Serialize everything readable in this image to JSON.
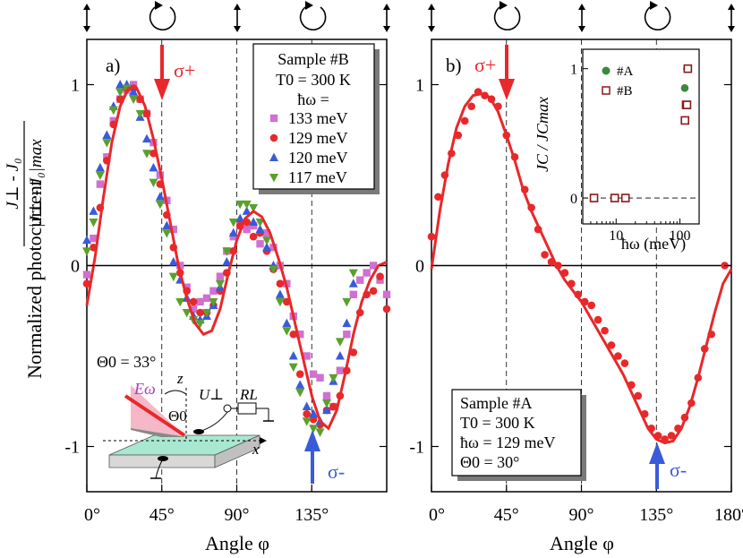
{
  "colors": {
    "fit": "#e8282a",
    "red_pts": "#e8282a",
    "pink_pts": "#d070d0",
    "blue_pts": "#3a5bd9",
    "green_pts": "#5aa02c",
    "sigma_plus": "#e8282a",
    "sigma_minus": "#3a5bd9",
    "inset_A": "#3a8a3a",
    "inset_B": "#8a1a1a"
  },
  "figure": {
    "y_axis_label": "Normalized photocurrent",
    "y_fraction_num": "J⊥ - J₀",
    "y_fraction_den": "|J⊥ - J₀|max",
    "polarization_icons": [
      "linear",
      "circular",
      "linear",
      "circular",
      "linear"
    ]
  },
  "chart_data": [
    {
      "type": "scatter",
      "panel": "a)",
      "xlabel": "Angle φ",
      "xlim": [
        0,
        180
      ],
      "ylim": [
        -1.25,
        1.25
      ],
      "xticks": [
        0,
        45,
        90,
        135
      ],
      "xtick_labels": [
        "0°",
        "45°",
        "90°",
        "135°"
      ],
      "yticks": [
        1,
        0,
        -1
      ],
      "ytick_labels": [
        "1",
        "0",
        "-1"
      ],
      "dashed_x": [
        45,
        90,
        135
      ],
      "annotations": {
        "sigma_plus": "σ+",
        "sigma_minus": "σ-",
        "theta": "Θ0 = 33°",
        "schematic": {
          "E": "Eω",
          "z": "z",
          "x": "x",
          "theta": "Θ0",
          "U": "U⊥",
          "R": "RL"
        }
      },
      "legend": {
        "title_lines": [
          "Sample #B",
          "T0 = 300 K",
          "ħω ="
        ],
        "entries": [
          {
            "label": "133 meV",
            "marker": "square",
            "color": "#d070d0"
          },
          {
            "label": "129 meV",
            "marker": "circle",
            "color": "#e8282a"
          },
          {
            "label": "120 meV",
            "marker": "triangle-up",
            "color": "#3a5bd9"
          },
          {
            "label": "117 meV",
            "marker": "triangle-down",
            "color": "#5aa02c"
          }
        ]
      },
      "fit": {
        "x": [
          0,
          5,
          10,
          15,
          20,
          25,
          30,
          35,
          40,
          45,
          50,
          55,
          60,
          65,
          70,
          75,
          80,
          85,
          90,
          95,
          100,
          105,
          110,
          115,
          120,
          125,
          130,
          135,
          140,
          145,
          150,
          155,
          160,
          165,
          170,
          175,
          180
        ],
        "y": [
          -0.22,
          0.05,
          0.38,
          0.68,
          0.88,
          0.98,
          0.98,
          0.88,
          0.7,
          0.48,
          0.24,
          0.0,
          -0.18,
          -0.32,
          -0.38,
          -0.36,
          -0.24,
          -0.04,
          0.14,
          0.26,
          0.3,
          0.27,
          0.18,
          0.04,
          -0.12,
          -0.32,
          -0.52,
          -0.72,
          -0.86,
          -0.9,
          -0.8,
          -0.6,
          -0.38,
          -0.2,
          -0.08,
          0.0,
          0.02
        ]
      },
      "series": [
        {
          "name": "133 meV",
          "marker": "square",
          "color": "#d070d0",
          "x": [
            0,
            4,
            8,
            12,
            16,
            20,
            24,
            28,
            32,
            36,
            40,
            44,
            48,
            52,
            56,
            60,
            64,
            68,
            72,
            76,
            80,
            84,
            88,
            92,
            96,
            100,
            104,
            108,
            112,
            116,
            120,
            124,
            128,
            132,
            136,
            140,
            144,
            148,
            152,
            156,
            160,
            164,
            168,
            172,
            176,
            180
          ],
          "y": [
            -0.05,
            0.15,
            0.45,
            0.6,
            0.8,
            0.92,
            0.97,
            1.0,
            0.92,
            0.84,
            0.68,
            0.5,
            0.36,
            0.2,
            0.0,
            -0.12,
            -0.24,
            -0.2,
            -0.18,
            -0.14,
            -0.06,
            0.08,
            0.16,
            0.22,
            0.2,
            0.22,
            0.12,
            0.18,
            0.1,
            0.0,
            -0.1,
            -0.28,
            -0.38,
            -0.5,
            -0.6,
            -0.62,
            -0.72,
            -0.78,
            -0.58,
            -0.38,
            -0.16,
            -0.08,
            -0.04,
            0.0,
            -0.08,
            -0.16
          ]
        },
        {
          "name": "129 meV",
          "marker": "circle",
          "color": "#e8282a",
          "x": [
            0,
            4,
            8,
            12,
            16,
            20,
            24,
            28,
            32,
            36,
            40,
            44,
            48,
            52,
            56,
            60,
            64,
            68,
            72,
            76,
            80,
            84,
            88,
            92,
            96,
            100,
            104,
            108,
            112,
            116,
            120,
            124,
            128,
            132,
            136,
            140,
            144,
            148,
            152,
            156,
            160,
            164,
            168,
            172,
            176,
            180
          ],
          "y": [
            -0.1,
            0.1,
            0.32,
            0.58,
            0.78,
            0.92,
            0.98,
            0.98,
            0.92,
            0.84,
            0.62,
            0.45,
            0.28,
            0.1,
            -0.04,
            -0.14,
            -0.2,
            -0.26,
            -0.26,
            -0.22,
            -0.14,
            -0.04,
            0.08,
            0.22,
            0.24,
            0.16,
            0.18,
            0.08,
            -0.02,
            -0.1,
            -0.2,
            -0.38,
            -0.6,
            -0.82,
            -0.85,
            -0.88,
            -0.8,
            -0.78,
            -0.72,
            -0.58,
            -0.48,
            -0.26,
            -0.16,
            -0.14,
            -0.06,
            -0.24
          ]
        },
        {
          "name": "120 meV",
          "marker": "triangle-up",
          "color": "#3a5bd9",
          "x": [
            0,
            4,
            8,
            12,
            16,
            20,
            24,
            28,
            32,
            36,
            40,
            44,
            48,
            52,
            56,
            60,
            64,
            68,
            72,
            76,
            80,
            84,
            88,
            92,
            96,
            100,
            104,
            108,
            112,
            116,
            120,
            124,
            128,
            132,
            136,
            140,
            144,
            148,
            152,
            156,
            160
          ],
          "y": [
            0.14,
            0.3,
            0.54,
            0.72,
            0.88,
            1.0,
            1.0,
            0.96,
            0.82,
            0.7,
            0.54,
            0.38,
            0.22,
            0.02,
            -0.08,
            -0.18,
            -0.28,
            -0.3,
            -0.28,
            -0.22,
            -0.12,
            0.02,
            0.18,
            0.26,
            0.3,
            0.24,
            0.2,
            0.1,
            0.0,
            -0.16,
            -0.32,
            -0.5,
            -0.66,
            -0.78,
            -0.82,
            -0.86,
            -0.8,
            -0.64,
            -0.5,
            -0.32,
            -0.1
          ]
        },
        {
          "name": "117 meV",
          "marker": "triangle-down",
          "color": "#5aa02c",
          "x": [
            0,
            4,
            8,
            12,
            16,
            20,
            24,
            28,
            32,
            36,
            40,
            44,
            48,
            52,
            56,
            60,
            64,
            68,
            72,
            76,
            80,
            84,
            88,
            92,
            96,
            100,
            104,
            108,
            112,
            116,
            120,
            124,
            128,
            132,
            136,
            140,
            144,
            148,
            152,
            156,
            160
          ],
          "y": [
            0.08,
            0.24,
            0.5,
            0.68,
            0.86,
            0.96,
            0.98,
            0.92,
            0.84,
            0.62,
            0.46,
            0.34,
            0.18,
            -0.06,
            -0.2,
            -0.26,
            -0.3,
            -0.32,
            -0.26,
            -0.2,
            -0.1,
            0.08,
            0.24,
            0.34,
            0.34,
            0.32,
            0.24,
            0.14,
            -0.02,
            -0.2,
            -0.36,
            -0.56,
            -0.7,
            -0.86,
            -0.9,
            -0.92,
            -0.76,
            -0.62,
            -0.42,
            -0.2,
            -0.04
          ]
        }
      ]
    },
    {
      "type": "scatter",
      "panel": "b)",
      "xlabel": "Angle φ",
      "xlim": [
        0,
        180
      ],
      "ylim": [
        -1.25,
        1.25
      ],
      "xticks": [
        0,
        45,
        90,
        135,
        180
      ],
      "xtick_labels": [
        "0°",
        "45°",
        "90°",
        "135°",
        "180°"
      ],
      "yticks": [
        1,
        0,
        -1
      ],
      "ytick_labels": [
        "1",
        "0",
        "-1"
      ],
      "dashed_x": [
        45,
        90,
        135
      ],
      "annotations": {
        "sigma_plus": "σ+",
        "sigma_minus": "σ-"
      },
      "info_box": [
        "Sample #A",
        "T0 = 300 K",
        "ħω = 129 meV",
        "Θ0 = 30°"
      ],
      "fit": {
        "x": [
          0,
          5,
          10,
          15,
          20,
          25,
          30,
          35,
          40,
          45,
          50,
          55,
          60,
          65,
          70,
          75,
          80,
          85,
          90,
          95,
          100,
          105,
          110,
          115,
          120,
          125,
          130,
          135,
          140,
          145,
          150,
          155,
          160,
          165,
          170,
          175,
          180
        ],
        "y": [
          -0.02,
          0.3,
          0.56,
          0.76,
          0.88,
          0.94,
          0.95,
          0.93,
          0.85,
          0.72,
          0.58,
          0.42,
          0.3,
          0.2,
          0.1,
          0.0,
          -0.08,
          -0.14,
          -0.2,
          -0.28,
          -0.36,
          -0.44,
          -0.52,
          -0.6,
          -0.7,
          -0.8,
          -0.9,
          -0.96,
          -0.98,
          -0.97,
          -0.9,
          -0.78,
          -0.62,
          -0.44,
          -0.26,
          -0.1,
          -0.02
        ]
      },
      "series": [
        {
          "name": "129 meV",
          "marker": "circle",
          "color": "#e8282a",
          "x": [
            0,
            4,
            8,
            12,
            16,
            20,
            24,
            28,
            32,
            36,
            40,
            45,
            50,
            56,
            60,
            64,
            68,
            72,
            76,
            80,
            84,
            88,
            92,
            96,
            100,
            104,
            108,
            112,
            116,
            120,
            124,
            128,
            132,
            136,
            140,
            144,
            148,
            152,
            156,
            160,
            164,
            168,
            176
          ],
          "y": [
            0.16,
            0.38,
            0.5,
            0.62,
            0.72,
            0.8,
            0.88,
            0.96,
            0.94,
            0.92,
            0.88,
            0.72,
            0.6,
            0.42,
            0.32,
            0.2,
            0.06,
            0.02,
            0.0,
            -0.04,
            -0.1,
            -0.16,
            -0.2,
            -0.22,
            -0.3,
            -0.36,
            -0.44,
            -0.5,
            -0.54,
            -0.66,
            -0.72,
            -0.82,
            -0.9,
            -0.94,
            -0.96,
            -0.94,
            -0.9,
            -0.84,
            -0.76,
            -0.62,
            -0.46,
            -0.38,
            0.0
          ]
        }
      ],
      "inset": {
        "type": "scatter",
        "xscale": "log",
        "xlim": [
          3,
          200
        ],
        "ylim": [
          -0.2,
          1.15
        ],
        "xticks": [
          10,
          100
        ],
        "xtick_labels": [
          "10",
          "100"
        ],
        "yticks": [
          0,
          1
        ],
        "ytick_labels": [
          "0",
          "1"
        ],
        "xlabel": "ħω (meV)",
        "ylabel": "JC / JCmax",
        "series": [
          {
            "name": "#A",
            "marker": "circle",
            "color": "#3a8a3a",
            "x": [
              4.5,
              9.5,
              14,
              119,
              124,
              129,
              133
            ],
            "y": [
              0,
              0,
              0,
              0.85,
              0.72,
              1.0,
              1.0
            ]
          },
          {
            "name": "#B",
            "marker": "open-square",
            "color": "#8a1a1a",
            "x": [
              4.5,
              9.5,
              14,
              120,
              125,
              129,
              133
            ],
            "y": [
              0,
              0,
              0,
              0.6,
              0.72,
              0.72,
              1.0
            ]
          }
        ]
      }
    }
  ]
}
